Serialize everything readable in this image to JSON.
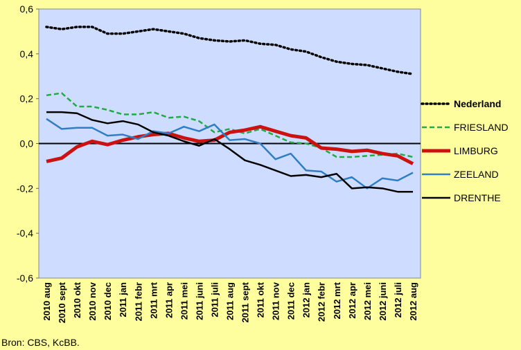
{
  "chart_data": {
    "type": "line",
    "categories": [
      "2010 aug",
      "2010 sept",
      "2010 okt",
      "2010 nov",
      "2010 dec",
      "2011 jan",
      "2011 febr",
      "2011 mrt",
      "2011 apr",
      "2011 mei",
      "2011 juni",
      "2011 juli",
      "2011 aug",
      "2011 sept",
      "2011 okt",
      "2011 nov",
      "2011 dec",
      "2012 jan",
      "2012 febr",
      "2012 mrt",
      "2012 apr",
      "2012 mei",
      "2012 juni",
      "2012 juli",
      "2012 aug"
    ],
    "ylim": [
      -0.6,
      0.6
    ],
    "yticks": [
      {
        "value": 0.6,
        "label": "0,6"
      },
      {
        "value": 0.4,
        "label": "0,4"
      },
      {
        "value": 0.2,
        "label": "0,2"
      },
      {
        "value": 0,
        "label": "0,0"
      },
      {
        "value": -0.2,
        "label": "-0,2"
      },
      {
        "value": -0.4,
        "label": "-0,4"
      },
      {
        "value": -0.6,
        "label": "-0,6"
      }
    ],
    "grid": false,
    "legend": "right",
    "source": "Bron: CBS, KcBB.",
    "series": [
      {
        "name": "Nederland",
        "color": "#000000",
        "dash": "dotted",
        "bold": true,
        "values": [
          0.52,
          0.51,
          0.52,
          0.52,
          0.49,
          0.49,
          0.5,
          0.51,
          0.5,
          0.49,
          0.47,
          0.46,
          0.455,
          0.46,
          0.445,
          0.44,
          0.42,
          0.41,
          0.385,
          0.365,
          0.355,
          0.35,
          0.335,
          0.32,
          0.31
        ]
      },
      {
        "name": "FRIESLAND",
        "color": "#22aa44",
        "dash": "dashed",
        "values": [
          0.215,
          0.225,
          0.165,
          0.165,
          0.15,
          0.13,
          0.13,
          0.14,
          0.115,
          0.12,
          0.1,
          0.05,
          0.065,
          0.045,
          0.065,
          0.035,
          0.005,
          0.0,
          -0.02,
          -0.06,
          -0.06,
          -0.055,
          -0.05,
          -0.045,
          -0.06
        ]
      },
      {
        "name": "LIMBURG",
        "color": "#cc1111",
        "dash": "solid",
        "thick": true,
        "values": [
          -0.08,
          -0.065,
          -0.015,
          0.01,
          -0.005,
          0.015,
          0.03,
          0.04,
          0.045,
          0.025,
          0.01,
          0.015,
          0.05,
          0.06,
          0.075,
          0.055,
          0.035,
          0.025,
          -0.02,
          -0.025,
          -0.035,
          -0.03,
          -0.045,
          -0.055,
          -0.09
        ]
      },
      {
        "name": "ZEELAND",
        "color": "#2f7ec4",
        "dash": "solid",
        "values": [
          0.11,
          0.065,
          0.07,
          0.07,
          0.035,
          0.04,
          0.02,
          0.055,
          0.045,
          0.075,
          0.055,
          0.085,
          0.015,
          0.02,
          0.0,
          -0.07,
          -0.045,
          -0.12,
          -0.125,
          -0.17,
          -0.15,
          -0.2,
          -0.155,
          -0.165,
          -0.13
        ]
      },
      {
        "name": "DRENTHE",
        "color": "#000000",
        "dash": "solid",
        "values": [
          0.14,
          0.14,
          0.135,
          0.105,
          0.09,
          0.1,
          0.085,
          0.05,
          0.035,
          0.01,
          -0.01,
          0.02,
          -0.025,
          -0.075,
          -0.095,
          -0.12,
          -0.145,
          -0.14,
          -0.15,
          -0.135,
          -0.2,
          -0.195,
          -0.2,
          -0.215,
          -0.215
        ]
      }
    ]
  }
}
